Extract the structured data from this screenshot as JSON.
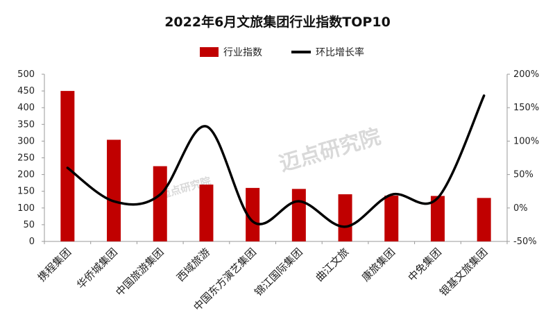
{
  "chart_data": {
    "type": "bar",
    "title": "2022年6月文旅集团行业指数TOP10",
    "categories": [
      "携程集团",
      "华侨城集团",
      "中国旅游集团",
      "西域旅游",
      "中国东方演艺集团",
      "锦江国际集团",
      "曲江文旅",
      "康旅集团",
      "中免集团",
      "银基文旅集团"
    ],
    "series": [
      {
        "name": "行业指数",
        "type": "bar",
        "axis": "left",
        "color": "#c00000",
        "values": [
          450,
          304,
          225,
          170,
          160,
          157,
          141,
          137,
          136,
          130
        ]
      },
      {
        "name": "环比增长率",
        "type": "line",
        "axis": "right",
        "color": "#000000",
        "values": [
          60,
          10,
          20,
          122,
          -20,
          10,
          -28,
          20,
          15,
          168
        ]
      }
    ],
    "y_left": {
      "min": 0,
      "max": 500,
      "step": 50,
      "ticks": [
        "0",
        "50",
        "100",
        "150",
        "200",
        "250",
        "300",
        "350",
        "400",
        "450",
        "500"
      ]
    },
    "y_right": {
      "min": -50,
      "max": 200,
      "step": 50,
      "ticks": [
        "-50%",
        "0%",
        "50%",
        "100%",
        "150%",
        "200%"
      ]
    },
    "legend_position": "top-center",
    "grid": false
  },
  "watermark": {
    "text": "迈点研究院",
    "small_text": "迈点研究院"
  }
}
